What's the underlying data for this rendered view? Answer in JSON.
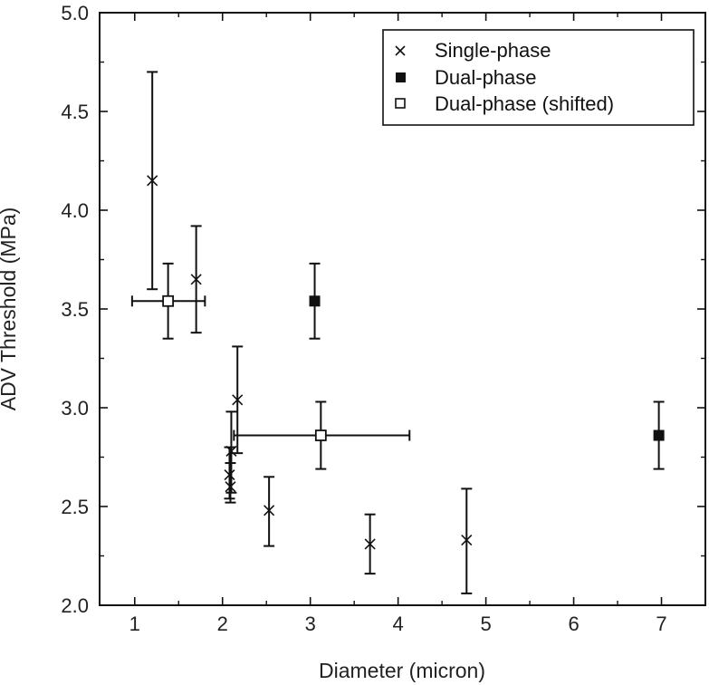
{
  "chart_data": {
    "type": "scatter",
    "xlabel": "Diameter (micron)",
    "ylabel": "ADV Threshold (MPa)",
    "xlim": [
      0.6,
      7.5
    ],
    "ylim": [
      2.0,
      5.0
    ],
    "xticks": [
      "1",
      "2",
      "3",
      "4",
      "5",
      "6",
      "7"
    ],
    "yticks": [
      "2.0",
      "2.5",
      "3.0",
      "3.5",
      "4.0",
      "4.5",
      "5.0"
    ],
    "grid": false,
    "legend_position": "top-right",
    "series": [
      {
        "name": "Single-phase",
        "marker": "x",
        "points": [
          {
            "x": 1.2,
            "y": 4.15,
            "ylo": 3.6,
            "yhi": 4.7
          },
          {
            "x": 1.7,
            "y": 3.65,
            "ylo": 3.38,
            "yhi": 3.92
          },
          {
            "x": 2.17,
            "y": 3.04,
            "ylo": 2.77,
            "yhi": 3.31
          },
          {
            "x": 2.1,
            "y": 2.78,
            "ylo": 2.57,
            "yhi": 2.98
          },
          {
            "x": 2.08,
            "y": 2.66,
            "ylo": 2.54,
            "yhi": 2.8
          },
          {
            "x": 2.09,
            "y": 2.6,
            "ylo": 2.52,
            "yhi": 2.72
          },
          {
            "x": 2.53,
            "y": 2.48,
            "ylo": 2.3,
            "yhi": 2.65
          },
          {
            "x": 3.68,
            "y": 2.31,
            "ylo": 2.16,
            "yhi": 2.46
          },
          {
            "x": 4.78,
            "y": 2.33,
            "ylo": 2.06,
            "yhi": 2.59
          }
        ]
      },
      {
        "name": "Dual-phase",
        "marker": "filled-square",
        "points": [
          {
            "x": 3.05,
            "y": 3.54,
            "ylo": 3.35,
            "yhi": 3.73
          },
          {
            "x": 6.97,
            "y": 2.86,
            "ylo": 2.69,
            "yhi": 3.03
          }
        ]
      },
      {
        "name": "Dual-phase (shifted)",
        "marker": "open-square",
        "points": [
          {
            "x": 1.38,
            "y": 3.54,
            "ylo": 3.35,
            "yhi": 3.73,
            "xlo": 0.97,
            "xhi": 1.8
          },
          {
            "x": 3.12,
            "y": 2.86,
            "ylo": 2.69,
            "yhi": 3.03,
            "xlo": 2.13,
            "xhi": 4.13
          }
        ]
      }
    ]
  },
  "colors": {
    "ink": "#111111",
    "background": "#ffffff"
  }
}
